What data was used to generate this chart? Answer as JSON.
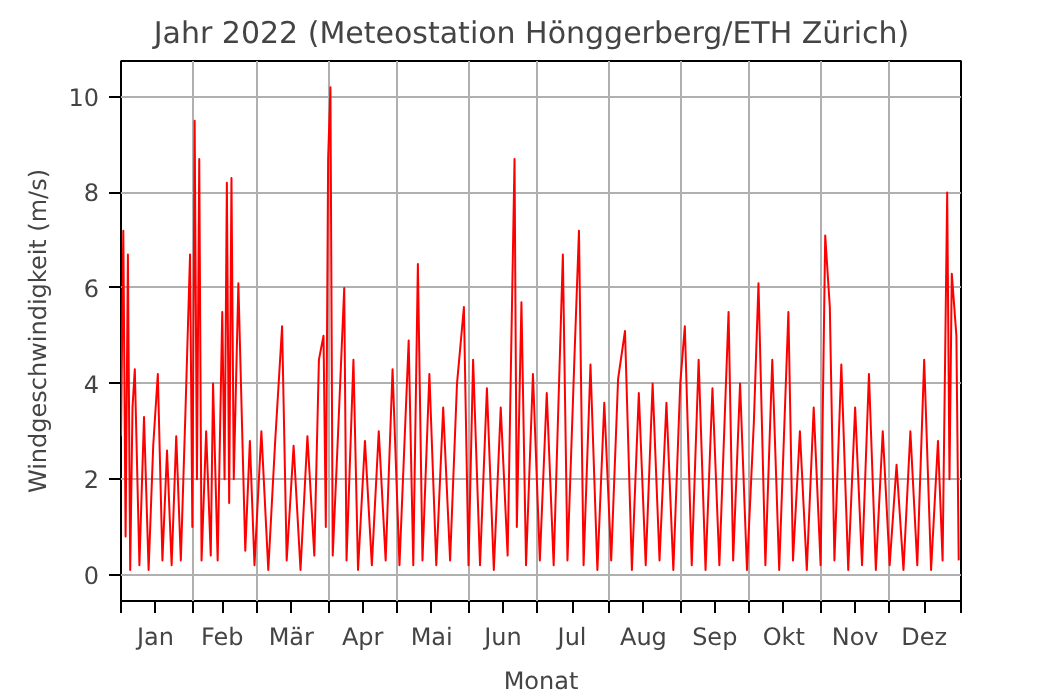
{
  "chart_data": {
    "type": "line",
    "title": "Jahr 2022   (Meteostation Hönggerberg/ETH Zürich)",
    "xlabel": "Monat",
    "ylabel": "Windgeschwindigkeit (m/s)",
    "xlim": [
      "2022-01-01",
      "2023-01-01"
    ],
    "ylim": [
      -0.55,
      10.75
    ],
    "yticks": [
      0,
      2,
      4,
      6,
      8,
      10
    ],
    "xticks": [
      {
        "value": "2022-01-01",
        "label": null
      },
      {
        "value": "2022-01-16",
        "label": "Jan"
      },
      {
        "value": "2022-02-01",
        "label": null
      },
      {
        "value": "2022-02-14",
        "label": "Feb"
      },
      {
        "value": "2022-03-01",
        "label": null
      },
      {
        "value": "2022-03-16",
        "label": "Mär"
      },
      {
        "value": "2022-04-01",
        "label": null
      },
      {
        "value": "2022-04-16",
        "label": "Apr"
      },
      {
        "value": "2022-05-01",
        "label": null
      },
      {
        "value": "2022-05-16",
        "label": "Mai"
      },
      {
        "value": "2022-06-01",
        "label": null
      },
      {
        "value": "2022-06-16",
        "label": "Jun"
      },
      {
        "value": "2022-07-01",
        "label": null
      },
      {
        "value": "2022-07-16",
        "label": "Jul"
      },
      {
        "value": "2022-08-01",
        "label": null
      },
      {
        "value": "2022-08-16",
        "label": "Aug"
      },
      {
        "value": "2022-09-01",
        "label": null
      },
      {
        "value": "2022-09-16",
        "label": "Sep"
      },
      {
        "value": "2022-10-01",
        "label": null
      },
      {
        "value": "2022-10-16",
        "label": "Okt"
      },
      {
        "value": "2022-11-01",
        "label": null
      },
      {
        "value": "2022-11-16",
        "label": "Nov"
      },
      {
        "value": "2022-12-01",
        "label": null
      },
      {
        "value": "2022-12-16",
        "label": "Dez"
      },
      {
        "value": "2023-01-01",
        "label": null
      }
    ],
    "grid": true,
    "marker": "none",
    "line_style": "solid",
    "series": [
      {
        "color": "#ff0000",
        "x": [
          "2022-01-01",
          "2022-01-02",
          "2022-01-03",
          "2022-01-04",
          "2022-01-05",
          "2022-01-06",
          "2022-01-07",
          "2022-01-09",
          "2022-01-11",
          "2022-01-13",
          "2022-01-15",
          "2022-01-17",
          "2022-01-19",
          "2022-01-21",
          "2022-01-23",
          "2022-01-25",
          "2022-01-27",
          "2022-01-29",
          "2022-01-31",
          "2022-02-01",
          "2022-02-02",
          "2022-02-03",
          "2022-02-04",
          "2022-02-05",
          "2022-02-07",
          "2022-02-09",
          "2022-02-10",
          "2022-02-12",
          "2022-02-14",
          "2022-02-15",
          "2022-02-16",
          "2022-02-17",
          "2022-02-18",
          "2022-02-19",
          "2022-02-21",
          "2022-02-24",
          "2022-02-26",
          "2022-02-28",
          "2022-03-03",
          "2022-03-06",
          "2022-03-09",
          "2022-03-12",
          "2022-03-14",
          "2022-03-17",
          "2022-03-20",
          "2022-03-23",
          "2022-03-26",
          "2022-03-28",
          "2022-03-30",
          "2022-03-31",
          "2022-04-01",
          "2022-04-02",
          "2022-04-03",
          "2022-04-05",
          "2022-04-08",
          "2022-04-09",
          "2022-04-12",
          "2022-04-14",
          "2022-04-17",
          "2022-04-20",
          "2022-04-23",
          "2022-04-26",
          "2022-04-29",
          "2022-05-02",
          "2022-05-06",
          "2022-05-08",
          "2022-05-10",
          "2022-05-12",
          "2022-05-15",
          "2022-05-18",
          "2022-05-21",
          "2022-05-24",
          "2022-05-27",
          "2022-05-30",
          "2022-06-01",
          "2022-06-03",
          "2022-06-06",
          "2022-06-09",
          "2022-06-12",
          "2022-06-15",
          "2022-06-18",
          "2022-06-21",
          "2022-06-22",
          "2022-06-24",
          "2022-06-26",
          "2022-06-29",
          "2022-07-02",
          "2022-07-05",
          "2022-07-08",
          "2022-07-12",
          "2022-07-14",
          "2022-07-17",
          "2022-07-19",
          "2022-07-21",
          "2022-07-24",
          "2022-07-27",
          "2022-07-30",
          "2022-08-02",
          "2022-08-05",
          "2022-08-08",
          "2022-08-11",
          "2022-08-14",
          "2022-08-17",
          "2022-08-20",
          "2022-08-23",
          "2022-08-26",
          "2022-08-29",
          "2022-09-01",
          "2022-09-03",
          "2022-09-06",
          "2022-09-09",
          "2022-09-12",
          "2022-09-15",
          "2022-09-18",
          "2022-09-22",
          "2022-09-24",
          "2022-09-27",
          "2022-09-30",
          "2022-10-03",
          "2022-10-05",
          "2022-10-08",
          "2022-10-11",
          "2022-10-14",
          "2022-10-18",
          "2022-10-20",
          "2022-10-23",
          "2022-10-26",
          "2022-10-29",
          "2022-11-01",
          "2022-11-03",
          "2022-11-05",
          "2022-11-07",
          "2022-11-10",
          "2022-11-13",
          "2022-11-16",
          "2022-11-19",
          "2022-11-22",
          "2022-11-25",
          "2022-11-28",
          "2022-12-01",
          "2022-12-04",
          "2022-12-07",
          "2022-12-10",
          "2022-12-13",
          "2022-12-16",
          "2022-12-19",
          "2022-12-22",
          "2022-12-24",
          "2022-12-26",
          "2022-12-27",
          "2022-12-28",
          "2022-12-30",
          "2022-12-31"
        ],
        "values": [
          2.9,
          7.2,
          0.8,
          6.7,
          0.1,
          3.5,
          4.3,
          0.2,
          3.3,
          0.1,
          2.7,
          4.2,
          0.3,
          2.6,
          0.2,
          2.9,
          0.3,
          3.4,
          6.7,
          1.0,
          9.5,
          2.0,
          8.7,
          0.3,
          3.0,
          0.4,
          4.0,
          0.3,
          5.5,
          2.0,
          8.2,
          1.5,
          8.3,
          2.0,
          6.1,
          0.5,
          2.8,
          0.2,
          3.0,
          0.1,
          2.8,
          5.2,
          0.3,
          2.7,
          0.1,
          2.9,
          0.4,
          4.5,
          5.0,
          1.0,
          8.7,
          10.2,
          0.4,
          2.6,
          6.0,
          0.3,
          4.5,
          0.1,
          2.8,
          0.2,
          3.0,
          0.3,
          4.3,
          0.2,
          4.9,
          0.2,
          6.5,
          0.3,
          4.2,
          0.2,
          3.5,
          0.3,
          4.0,
          5.6,
          0.2,
          4.5,
          0.2,
          3.9,
          0.1,
          3.5,
          0.4,
          8.7,
          1.0,
          5.7,
          0.2,
          4.2,
          0.3,
          3.8,
          0.2,
          6.7,
          0.3,
          4.5,
          7.2,
          0.2,
          4.4,
          0.1,
          3.6,
          0.3,
          4.1,
          5.1,
          0.1,
          3.8,
          0.2,
          4.0,
          0.3,
          3.6,
          0.1,
          4.0,
          5.2,
          0.2,
          4.5,
          0.1,
          3.9,
          0.2,
          5.5,
          0.3,
          4.0,
          0.1,
          3.2,
          6.1,
          0.2,
          4.5,
          0.1,
          5.5,
          0.3,
          3.0,
          0.1,
          3.5,
          0.2,
          7.1,
          5.6,
          0.3,
          4.4,
          0.1,
          3.5,
          0.2,
          4.2,
          0.1,
          3.0,
          0.2,
          2.3,
          0.1,
          3.0,
          0.2,
          4.5,
          0.1,
          2.8,
          0.3,
          8.0,
          2.0,
          6.3,
          5.0,
          0.3
        ]
      }
    ]
  }
}
